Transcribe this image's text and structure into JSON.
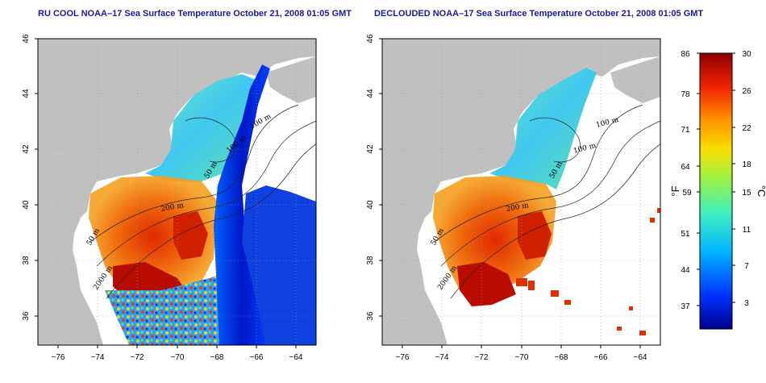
{
  "panels": [
    {
      "title": "RU COOL NOAA–17 Sea Surface Temperature October 21, 2008 01:05 GMT",
      "x_ticks": [
        "−76",
        "−74",
        "−72",
        "−70",
        "−68",
        "−66",
        "−64"
      ],
      "y_ticks": [
        "46",
        "44",
        "42",
        "40",
        "38",
        "36"
      ],
      "contour_labels": [
        "100 m",
        "100 m",
        "50 m",
        "200 m",
        "50 m",
        "2000 m"
      ]
    },
    {
      "title": "DECLOUDED NOAA–17 Sea Surface Temperature October 21, 2008 01:05 GMT",
      "x_ticks": [
        "−76",
        "−74",
        "−72",
        "−70",
        "−68",
        "−66",
        "−64"
      ],
      "y_ticks": [
        "46",
        "44",
        "42",
        "40",
        "38",
        "36"
      ],
      "contour_labels": [
        "100 m",
        "100 m",
        "50 m",
        "200 m",
        "50 m",
        "2000 m"
      ]
    }
  ],
  "colorbar": {
    "f_ticks": [
      "86",
      "78",
      "71",
      "64",
      "59",
      "51",
      "44",
      "37"
    ],
    "c_ticks": [
      "30",
      "26",
      "22",
      "18",
      "15",
      "11",
      "7",
      "3"
    ],
    "f_label": "°F",
    "c_label": "°C"
  },
  "colors": {
    "land": "#c0c0c0",
    "ocean_nodata": "#ffffff",
    "title": "#1a1a9a",
    "cold": "#0000b4",
    "cool": "#0096ff",
    "mild": "#60e0b0",
    "warm": "#f0c000",
    "hot": "#e83000",
    "very_hot": "#b00000"
  }
}
